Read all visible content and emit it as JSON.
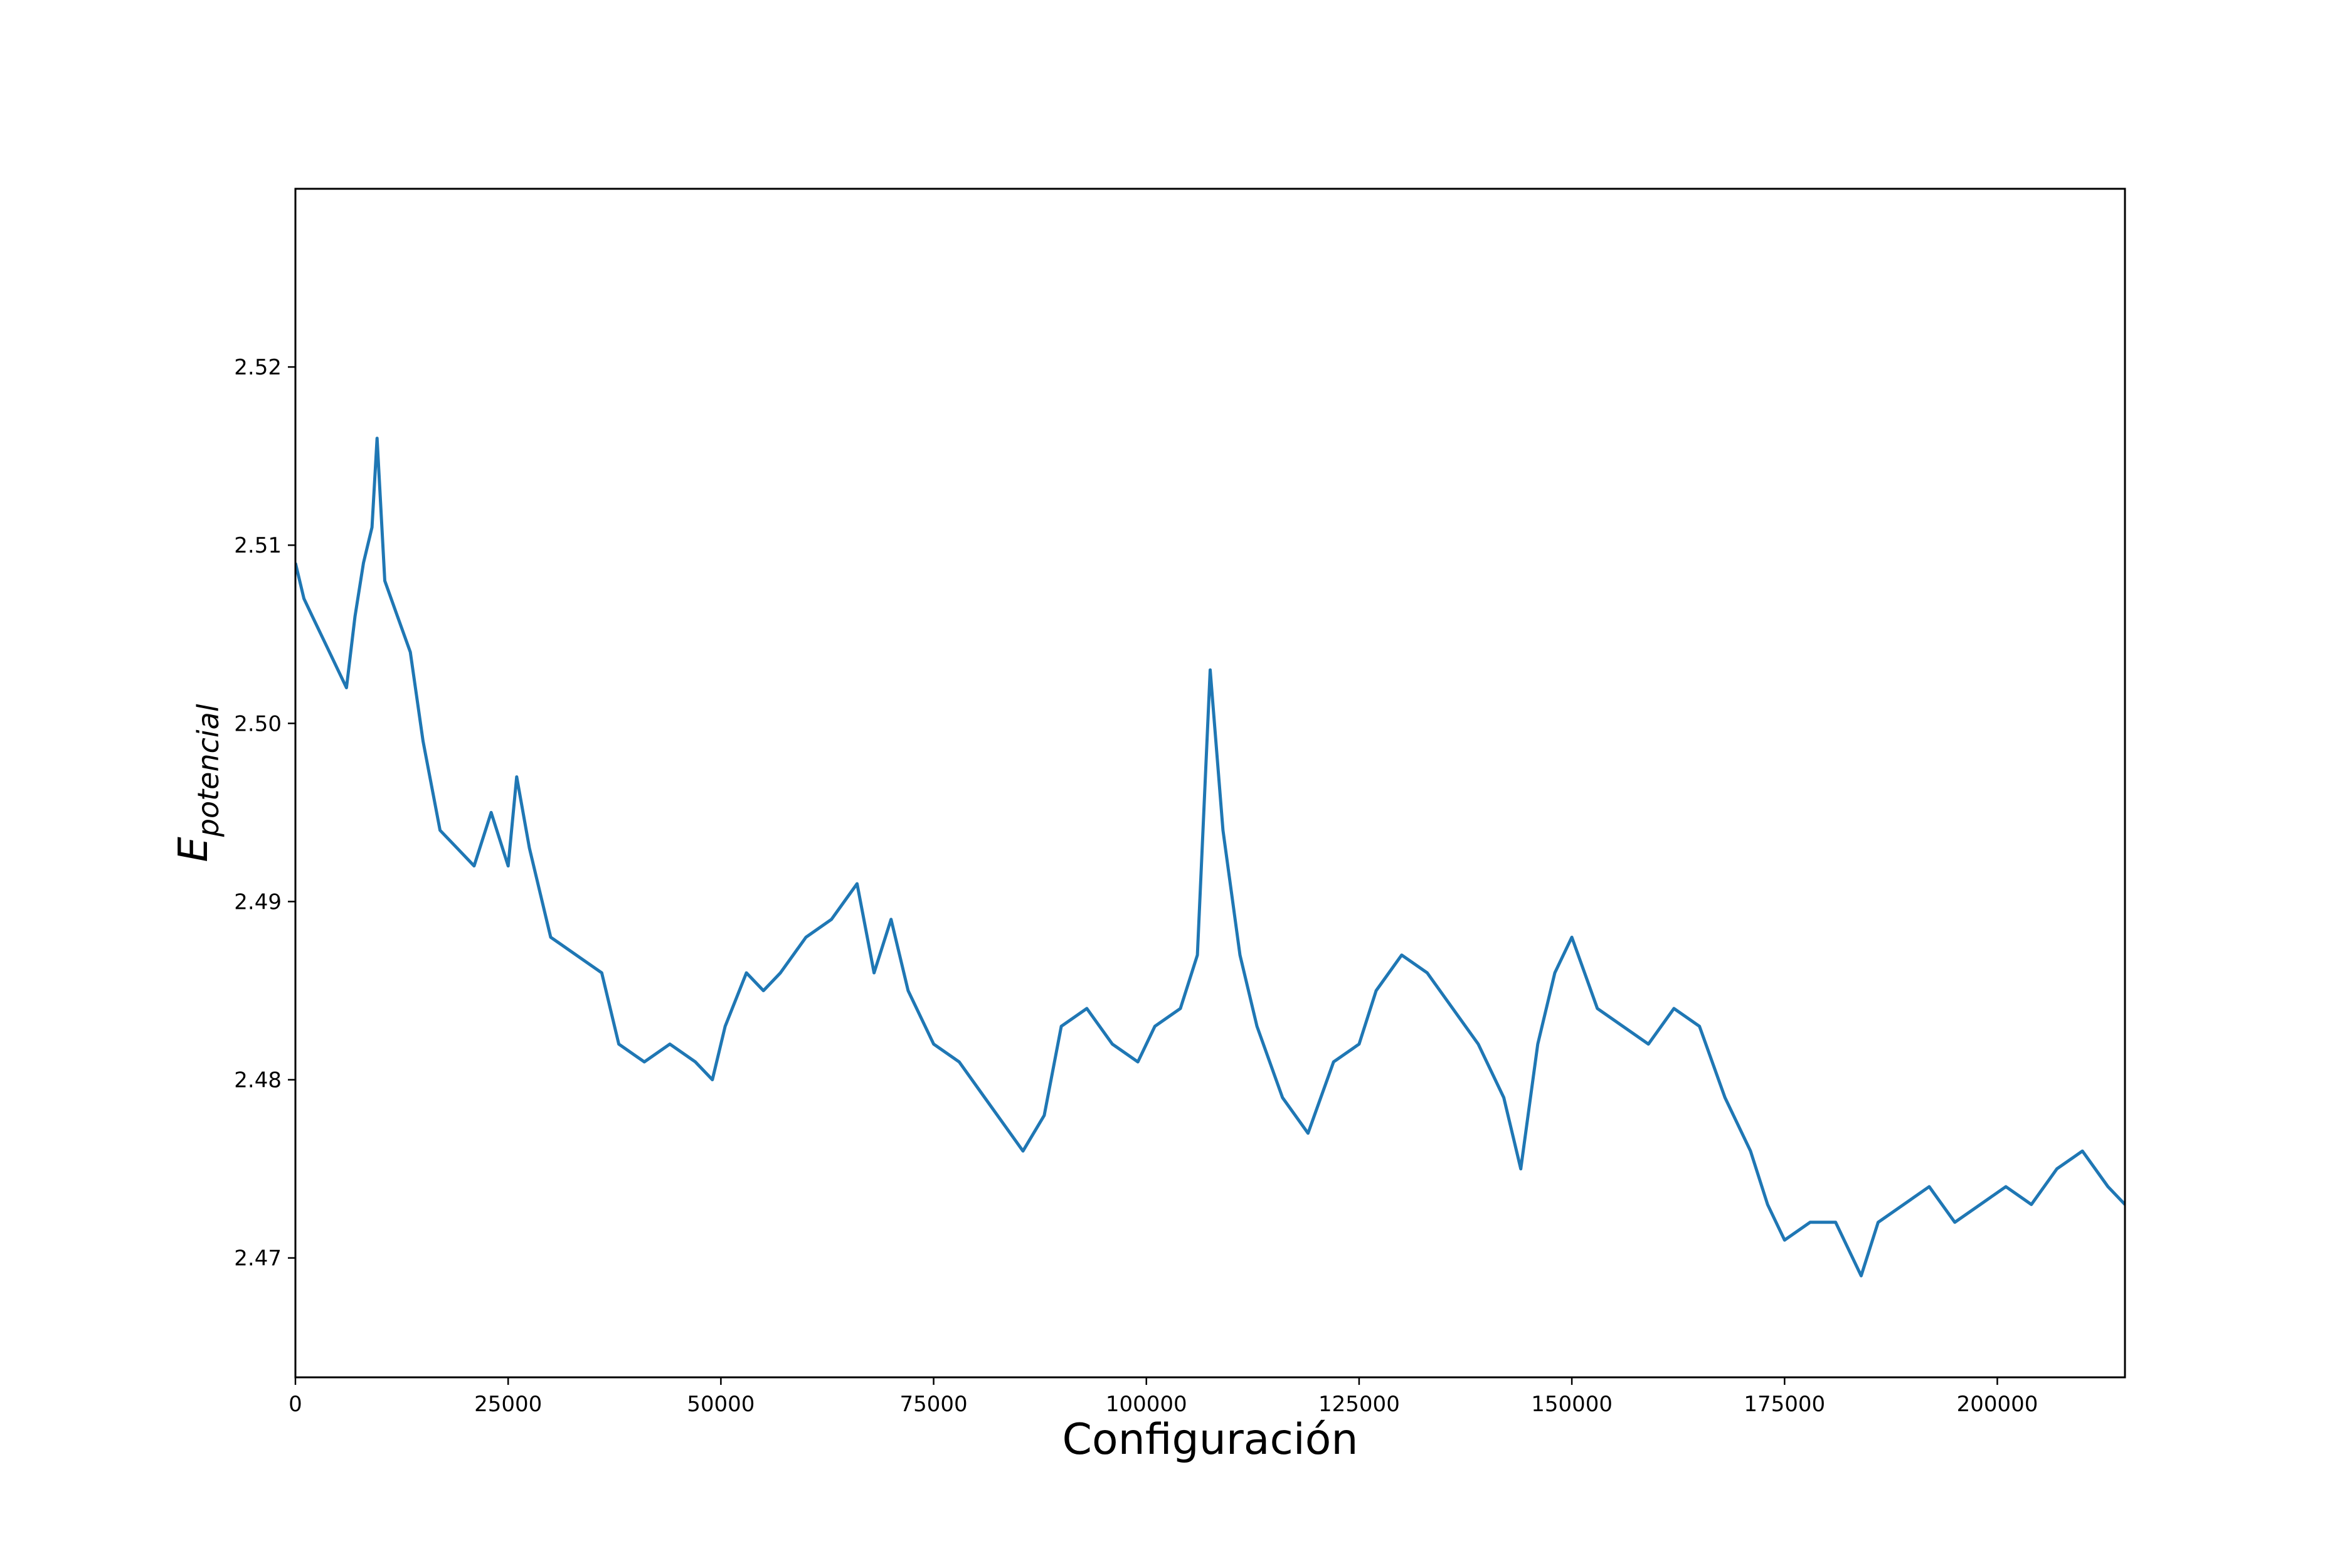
{
  "chart_data": {
    "type": "line",
    "title": "",
    "xlabel": "Configuración",
    "ylabel_main": "E",
    "ylabel_sub": "potencial",
    "xlim": [
      0,
      215000
    ],
    "ylim": [
      2.4633,
      2.53
    ],
    "grid": false,
    "xticks": [
      0,
      25000,
      50000,
      75000,
      100000,
      125000,
      150000,
      175000,
      200000
    ],
    "xtick_labels": [
      "0",
      "25000",
      "50000",
      "75000",
      "100000",
      "125000",
      "150000",
      "175000",
      "200000"
    ],
    "yticks": [
      2.47,
      2.48,
      2.49,
      2.5,
      2.51,
      2.52
    ],
    "ytick_labels": [
      "2.47",
      "2.48",
      "2.49",
      "2.50",
      "2.51",
      "2.52"
    ],
    "series": [
      {
        "color": "#1f77b4",
        "x": [
          0,
          1000,
          2000,
          3000,
          4000,
          5000,
          6000,
          7000,
          8000,
          9000,
          9600,
          10500,
          12000,
          13500,
          15000,
          17000,
          19000,
          21000,
          23000,
          25000,
          26000,
          27500,
          30000,
          33000,
          36000,
          38000,
          41000,
          44000,
          47000,
          49000,
          50500,
          53000,
          55000,
          57000,
          60000,
          63000,
          66000,
          68000,
          70000,
          72000,
          75000,
          78000,
          81000,
          84000,
          85500,
          88000,
          90000,
          93000,
          96000,
          99000,
          101000,
          104000,
          106000,
          107500,
          109000,
          111000,
          113000,
          116000,
          119000,
          122000,
          125000,
          127000,
          130000,
          133000,
          136000,
          139000,
          142000,
          144000,
          146000,
          148000,
          150000,
          153000,
          156000,
          159000,
          162000,
          165000,
          168000,
          171000,
          173000,
          175000,
          178000,
          181000,
          184000,
          186000,
          189000,
          192000,
          195000,
          198000,
          201000,
          204000,
          207000,
          210000,
          213000,
          215000
        ],
        "y": [
          2.509,
          2.507,
          2.506,
          2.505,
          2.504,
          2.503,
          2.502,
          2.506,
          2.509,
          2.511,
          2.516,
          2.508,
          2.506,
          2.504,
          2.499,
          2.494,
          2.493,
          2.492,
          2.495,
          2.492,
          2.497,
          2.493,
          2.488,
          2.487,
          2.486,
          2.482,
          2.481,
          2.482,
          2.481,
          2.48,
          2.483,
          2.486,
          2.485,
          2.486,
          2.488,
          2.489,
          2.491,
          2.486,
          2.489,
          2.485,
          2.482,
          2.481,
          2.479,
          2.477,
          2.476,
          2.478,
          2.483,
          2.484,
          2.482,
          2.481,
          2.483,
          2.484,
          2.487,
          2.503,
          2.494,
          2.487,
          2.483,
          2.479,
          2.477,
          2.481,
          2.482,
          2.485,
          2.487,
          2.486,
          2.484,
          2.482,
          2.479,
          2.475,
          2.482,
          2.486,
          2.488,
          2.484,
          2.483,
          2.482,
          2.484,
          2.483,
          2.479,
          2.476,
          2.473,
          2.471,
          2.472,
          2.472,
          2.469,
          2.472,
          2.473,
          2.474,
          2.472,
          2.473,
          2.474,
          2.473,
          2.475,
          2.476,
          2.474,
          2.473
        ]
      }
    ]
  }
}
